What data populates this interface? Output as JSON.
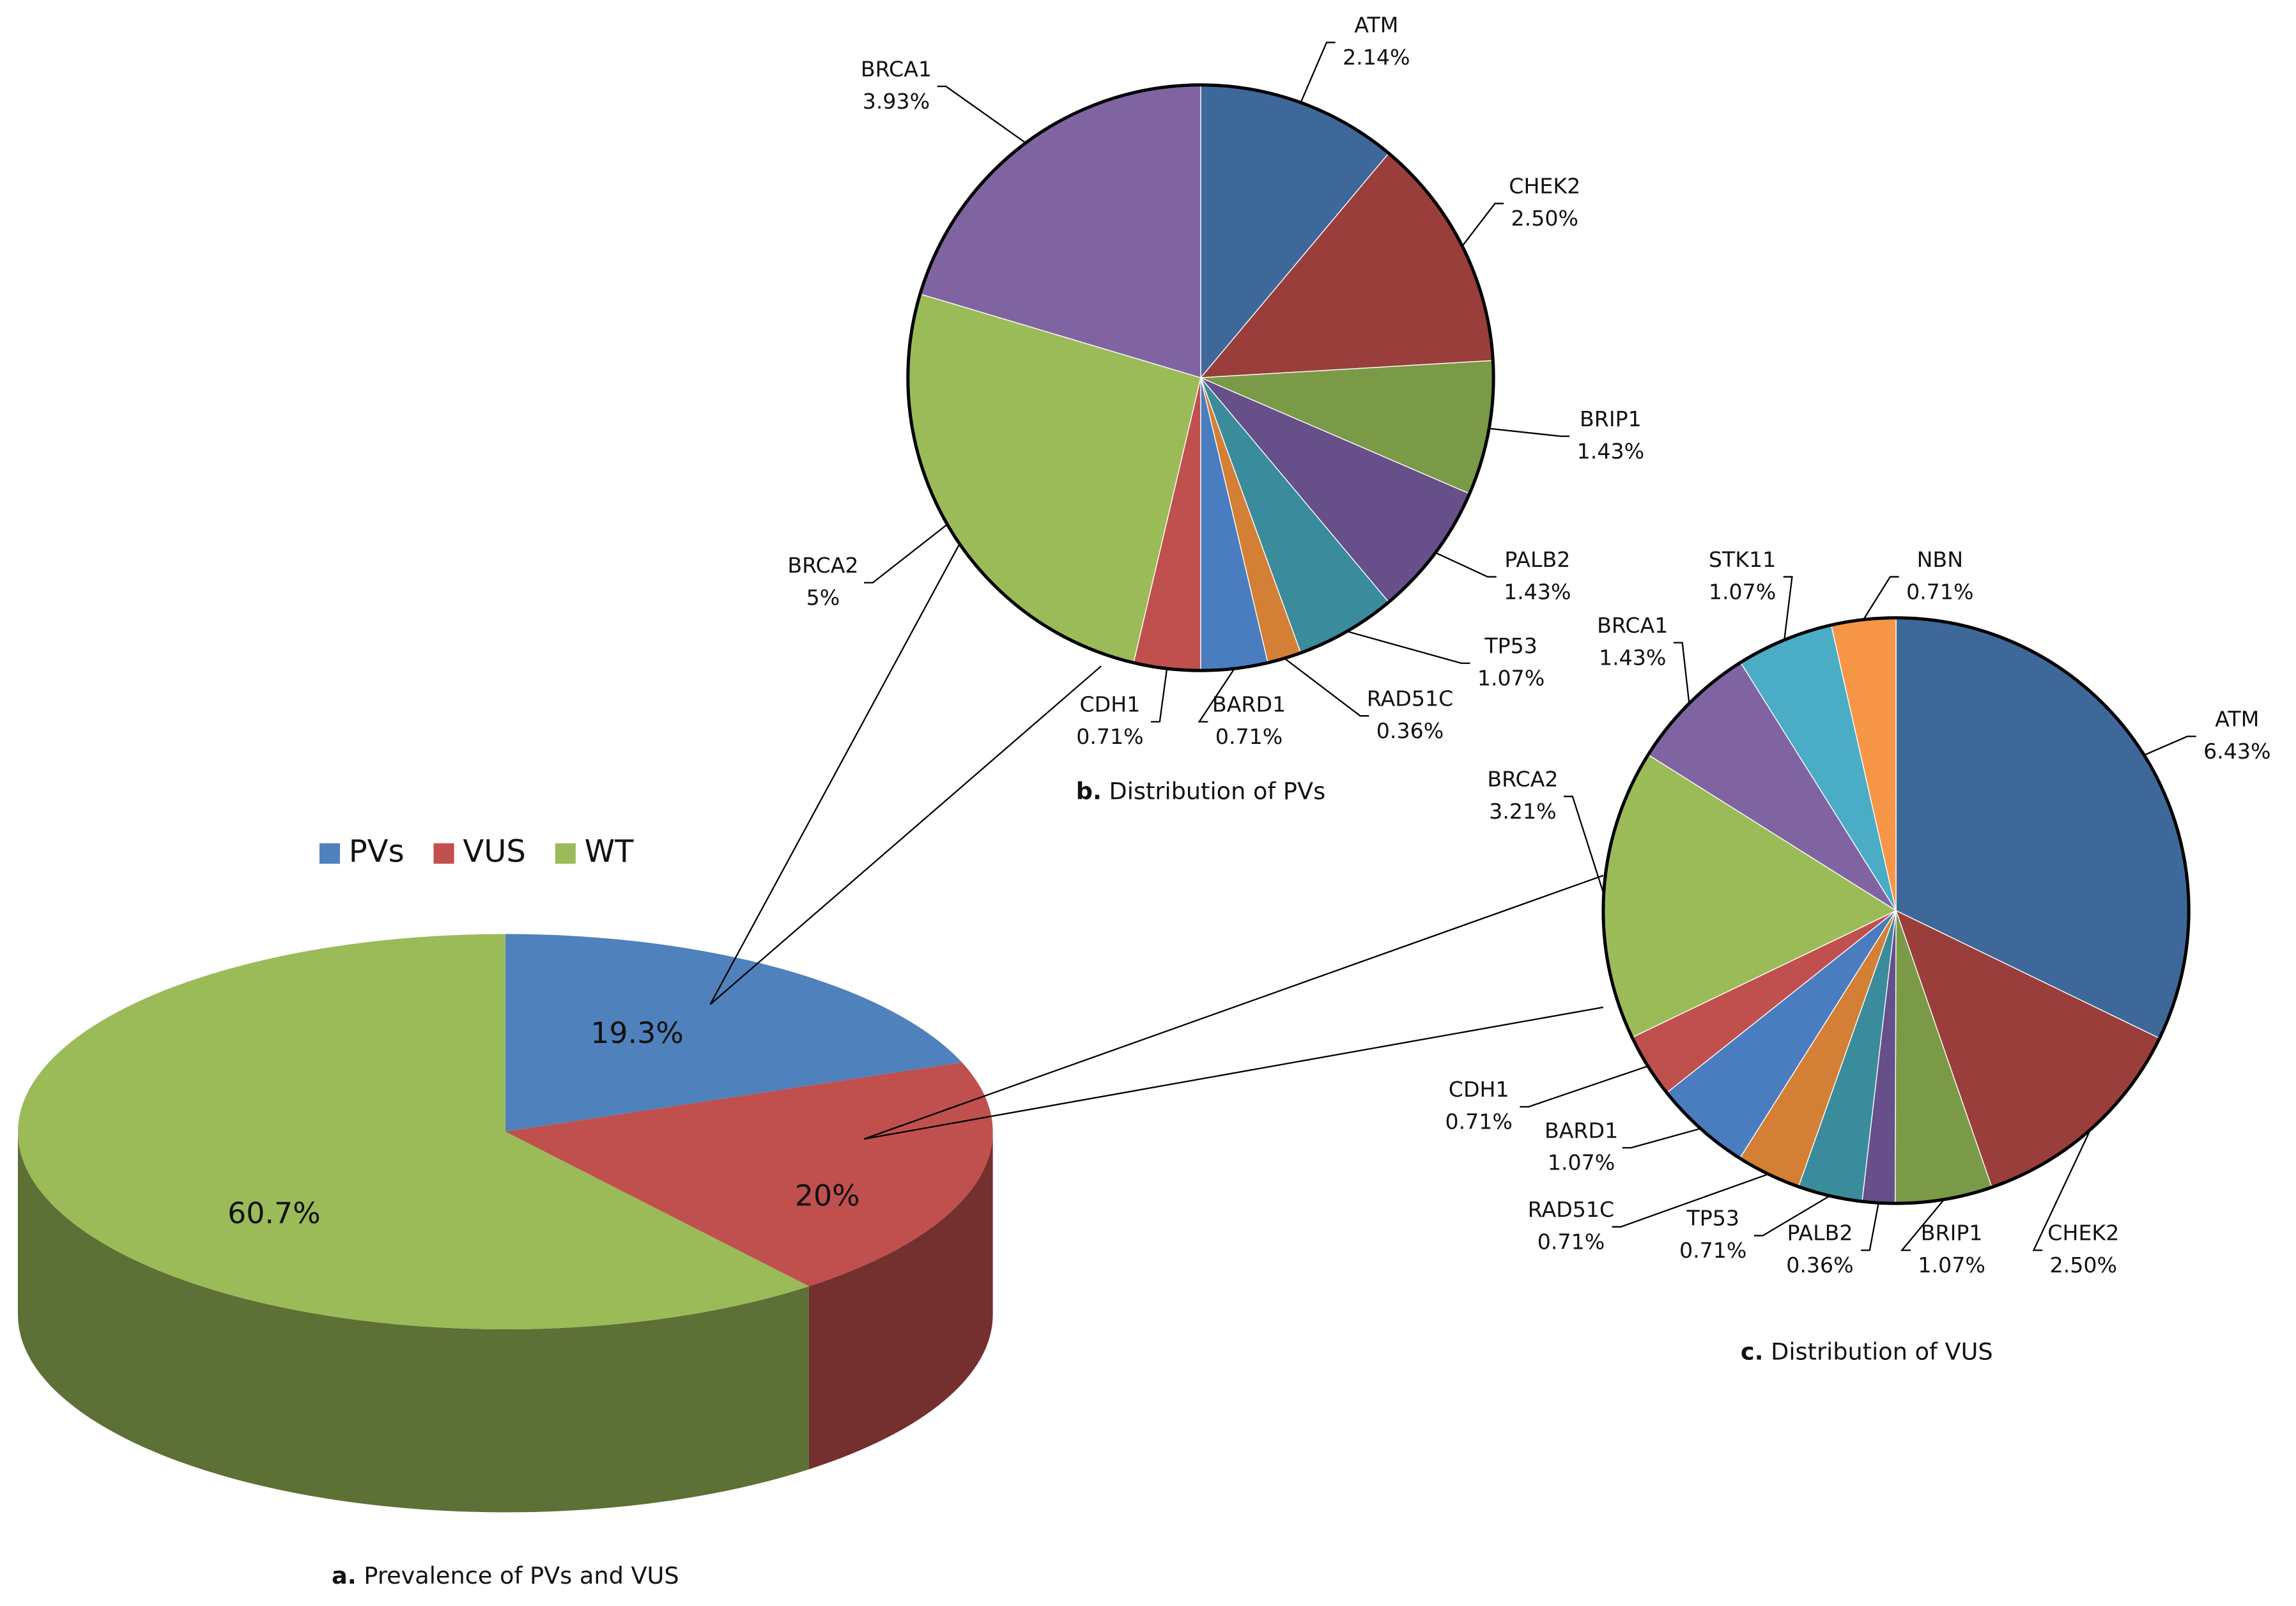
{
  "chart_data": [
    {
      "type": "pie",
      "depth3d": true,
      "panel": "a.",
      "title": "Prevalence of PVs and VUS",
      "categories": [
        "PVs",
        "VUS",
        "WT"
      ],
      "values": [
        19.3,
        20,
        60.7
      ],
      "value_labels": [
        "19.3%",
        "20%",
        "60.7%"
      ],
      "colors": [
        "#4f81bd",
        "#c0504d",
        "#9bbb59"
      ],
      "legend": "top"
    },
    {
      "type": "pie",
      "panel": "b.",
      "title": "Distribution of PVs",
      "categories": [
        "ATM",
        "CHEK2",
        "BRIP1",
        "PALB2",
        "TP53",
        "RAD51C",
        "BARD1",
        "CDH1",
        "BRCA2",
        "BRCA1"
      ],
      "values": [
        2.14,
        2.5,
        1.43,
        1.43,
        1.07,
        0.36,
        0.71,
        0.71,
        5,
        3.93
      ],
      "value_labels": [
        "2.14%",
        "2.50%",
        "1.43%",
        "1.43%",
        "1.07%",
        "0.36%",
        "0.71%",
        "0.71%",
        "5%",
        "3.93%"
      ],
      "colors": [
        "#3e6899",
        "#9a3e3c",
        "#7b9a47",
        "#674f8a",
        "#3a8b9c",
        "#d37f35",
        "#4a7cc0",
        "#c0504d",
        "#9bbb59",
        "#8064a2"
      ]
    },
    {
      "type": "pie",
      "panel": "c.",
      "title": "Distribution of VUS",
      "categories": [
        "ATM",
        "CHEK2",
        "BRIP1",
        "PALB2",
        "TP53",
        "RAD51C",
        "BARD1",
        "CDH1",
        "BRCA2",
        "BRCA1",
        "STK11",
        "NBN"
      ],
      "values": [
        6.43,
        2.5,
        1.07,
        0.36,
        0.71,
        0.71,
        1.07,
        0.71,
        3.21,
        1.43,
        1.07,
        0.71
      ],
      "value_labels": [
        "6.43%",
        "2.50%",
        "1.07%",
        "0.36%",
        "0.71%",
        "0.71%",
        "1.07%",
        "0.71%",
        "3.21%",
        "1.43%",
        "1.07%",
        "0.71%"
      ],
      "colors": [
        "#3e6899",
        "#9a3e3c",
        "#7b9a47",
        "#674f8a",
        "#3a8b9c",
        "#d37f35",
        "#4a7cc0",
        "#c0504d",
        "#9bbb59",
        "#8064a2",
        "#4bacc6",
        "#f79646"
      ]
    }
  ]
}
